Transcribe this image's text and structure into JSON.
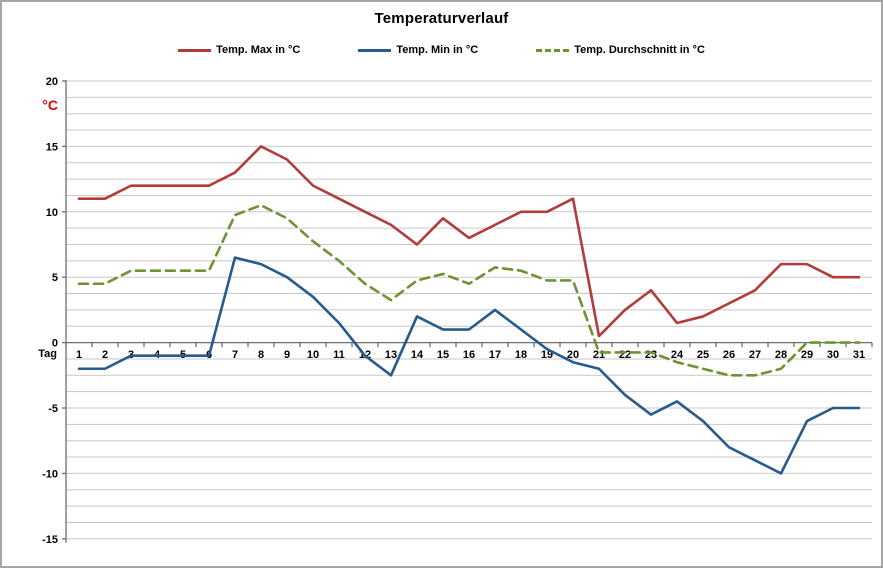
{
  "title": "Temperaturverlauf",
  "y_axis": {
    "unit_label": "°C",
    "min": -15,
    "max": 20,
    "major_tick_step": 5,
    "minor_gridline_step": 1.25,
    "tick_labels": [
      "20",
      "15",
      "10",
      "5",
      "0",
      "-5",
      "-10",
      "-15"
    ]
  },
  "x_axis": {
    "title": "Tag",
    "tick_labels": [
      "1",
      "2",
      "3",
      "4",
      "5",
      "6",
      "7",
      "8",
      "9",
      "10",
      "11",
      "12",
      "13",
      "14",
      "15",
      "16",
      "17",
      "18",
      "19",
      "20",
      "21",
      "22",
      "23",
      "24",
      "25",
      "26",
      "27",
      "28",
      "29",
      "30",
      "31"
    ]
  },
  "colors": {
    "temp_max": "#b23b3c",
    "temp_min": "#275a8d",
    "temp_avg": "#6f9233",
    "gridline": "#c9c9c9",
    "axis": "#6e6e6e",
    "unit_label": "#e60000"
  },
  "chart_data": {
    "type": "line",
    "title": "Temperaturverlauf",
    "xlabel": "Tag",
    "ylabel": "°C",
    "ylim": [
      -15,
      20
    ],
    "grid": true,
    "legend_position": "top",
    "x": [
      1,
      2,
      3,
      4,
      5,
      6,
      7,
      8,
      9,
      10,
      11,
      12,
      13,
      14,
      15,
      16,
      17,
      18,
      19,
      20,
      21,
      22,
      23,
      24,
      25,
      26,
      27,
      28,
      29,
      30,
      31
    ],
    "series": [
      {
        "name": "Temp. Max in °C",
        "color": "#b23b3c",
        "style": "solid",
        "values": [
          11,
          11,
          12,
          12,
          12,
          12,
          13,
          15,
          14,
          12,
          11,
          10,
          9,
          7.5,
          9.5,
          8,
          9,
          10,
          10,
          11,
          0.5,
          2.5,
          4,
          1.5,
          2,
          3,
          4,
          6,
          6,
          5,
          5
        ]
      },
      {
        "name": "Temp. Min in °C",
        "color": "#275a8d",
        "style": "solid",
        "values": [
          -2,
          -2,
          -1,
          -1,
          -1,
          -1,
          6.5,
          6,
          5,
          3.5,
          1.5,
          -1,
          -2.5,
          2,
          1,
          1,
          2.5,
          1,
          -0.5,
          -1.5,
          -2,
          -4,
          -5.5,
          -4.5,
          -6,
          -8,
          -9,
          -10,
          -6,
          -5,
          -5
        ]
      },
      {
        "name": "Temp. Durchschnitt in °C",
        "color": "#6f9233",
        "style": "dashed",
        "values": [
          4.5,
          4.5,
          5.5,
          5.5,
          5.5,
          5.5,
          9.75,
          10.5,
          9.5,
          7.75,
          6.25,
          4.5,
          3.25,
          4.75,
          5.25,
          4.5,
          5.75,
          5.5,
          4.75,
          4.75,
          -0.75,
          -0.75,
          -0.75,
          -1.5,
          -2,
          -2.5,
          -2.5,
          -2,
          0,
          0,
          0
        ]
      }
    ]
  }
}
